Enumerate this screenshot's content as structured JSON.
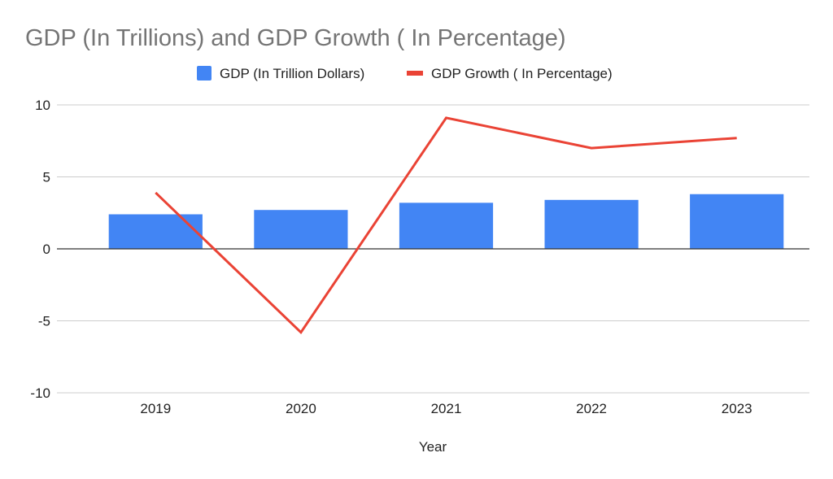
{
  "chart_data": {
    "type": "bar",
    "title": "GDP (In Trillions) and GDP Growth ( In Percentage)",
    "xlabel": "Year",
    "ylabel": "",
    "categories": [
      "2019",
      "2020",
      "2021",
      "2022",
      "2023"
    ],
    "ylim": [
      -10,
      10
    ],
    "yticks": [
      10,
      5,
      0,
      -5,
      -10
    ],
    "grid": true,
    "legend_position": "top-center",
    "series": [
      {
        "name": "GDP (In Trillion Dollars)",
        "type": "bar",
        "color": "#4285F4",
        "values": [
          2.4,
          2.7,
          3.2,
          3.4,
          3.8
        ]
      },
      {
        "name": "GDP Growth ( In Percentage)",
        "type": "line",
        "color": "#EA4335",
        "values": [
          3.9,
          -5.8,
          9.1,
          7.0,
          7.7
        ]
      }
    ]
  }
}
